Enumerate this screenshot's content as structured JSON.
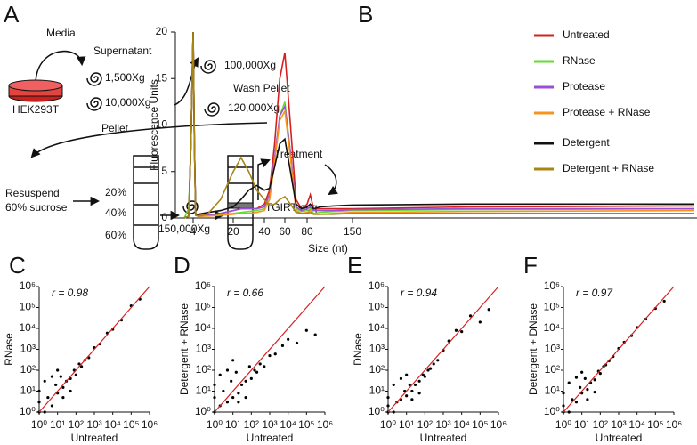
{
  "panel_a": {
    "letter": "A",
    "media": "Media",
    "supernatant": "Supernatant",
    "g1": "1,500Xg",
    "g2": "10,000Xg",
    "g3": "100,000Xg",
    "wash": "Wash Pellet",
    "g4": "120,000Xg",
    "cells": "HEK293T",
    "pellet": "Pellet",
    "resuspend": "Resuspend",
    "sucrose": "60% sucrose",
    "s20": "20%",
    "s40": "40%",
    "s60": "60%",
    "g5": "150,000Xg",
    "treatment": "Treatment",
    "seq": "TGIRT-seq"
  },
  "chart_data": [
    {
      "type": "line",
      "label": "B",
      "xlabel": "Size (nt)",
      "ylabel": "Fluorescence Units",
      "x": [
        2,
        3,
        3.5,
        4,
        4.5,
        5,
        6,
        8,
        10,
        15,
        20,
        25,
        30,
        35,
        40,
        45,
        50,
        55,
        60,
        65,
        70,
        75,
        80,
        85,
        90,
        100,
        120,
        150,
        200,
        300
      ],
      "xlim": [
        0,
        300
      ],
      "xticks": [
        4,
        20,
        40,
        60,
        80,
        150
      ],
      "ylim": [
        0,
        20
      ],
      "yticks": [
        0,
        5,
        10,
        15,
        20
      ],
      "series": [
        {
          "name": "Untreated",
          "color": "#d62020",
          "values": [
            0,
            0.2,
            8,
            20,
            8,
            0.5,
            0.3,
            0.3,
            0.3,
            0.5,
            0.8,
            1,
            1,
            1,
            1.5,
            3,
            8,
            15,
            17.8,
            10,
            2,
            1,
            1.5,
            2.5,
            1,
            1,
            1,
            1,
            1.2,
            1.3
          ]
        },
        {
          "name": "RNase",
          "color": "#66dd33",
          "values": [
            0,
            1,
            8,
            20,
            8,
            0.3,
            0.2,
            0.2,
            0.3,
            0.4,
            0.5,
            0.6,
            0.7,
            0.8,
            1,
            2,
            6,
            11,
            12.5,
            7,
            1,
            0.7,
            0.8,
            1,
            0.5,
            0.6,
            0.7,
            0.8,
            0.9,
            1
          ]
        },
        {
          "name": "Protease",
          "color": "#9b4fd6",
          "values": [
            0,
            0.2,
            8,
            20,
            8,
            0.3,
            0.2,
            0.2,
            0.3,
            0.5,
            0.8,
            1,
            1,
            1,
            1.2,
            2.5,
            6.5,
            11,
            12,
            7,
            1.2,
            0.8,
            1,
            1.2,
            0.8,
            0.8,
            0.8,
            0.9,
            1,
            1
          ]
        },
        {
          "name": "Protease + RNase",
          "color": "#f7941d",
          "values": [
            0,
            0.2,
            8,
            20,
            8,
            0.3,
            0.2,
            0.2,
            0.2,
            0.3,
            0.4,
            0.5,
            0.5,
            0.6,
            0.8,
            2,
            6,
            10.5,
            11.5,
            6.5,
            0.8,
            0.5,
            0.6,
            0.8,
            0.4,
            0.4,
            0.5,
            0.6,
            0.7,
            0.8
          ]
        },
        {
          "name": "Detergent",
          "color": "#111111",
          "values": [
            0,
            0.2,
            8,
            20,
            8,
            0.4,
            0.4,
            0.5,
            0.6,
            0.8,
            1.2,
            2,
            3,
            3.5,
            3,
            3.2,
            5.5,
            8,
            8.5,
            5,
            1.5,
            1,
            1.2,
            1.5,
            1,
            1.2,
            1.3,
            1.4,
            1.5,
            1.5
          ]
        },
        {
          "name": "Detergent + RNase",
          "color": "#a88515",
          "values": [
            0,
            0.2,
            8,
            20,
            8,
            0.3,
            0.2,
            0.3,
            0.5,
            2,
            5,
            6.5,
            5,
            3,
            2,
            1.3,
            1.5,
            2,
            2.3,
            1.5,
            0.6,
            0.5,
            0.5,
            0.6,
            0.4,
            0.4,
            0.4,
            0.5,
            0.5,
            0.5
          ]
        }
      ]
    },
    {
      "type": "scatter",
      "label": "C",
      "xlabel": "Untreated",
      "ylabel": "RNase",
      "annotation": "r = 0.98",
      "log_scale": true,
      "color": "#000000",
      "diagonal_color": "#d62020",
      "xlim": [
        1,
        1000000
      ],
      "ylim": [
        1,
        1000000
      ],
      "xticks": [
        {
          "value": 1,
          "label": "10⁰"
        },
        {
          "value": 10,
          "label": "10¹"
        },
        {
          "value": 100,
          "label": "10²"
        },
        {
          "value": 1000,
          "label": "10³"
        },
        {
          "value": 10000,
          "label": "10⁴"
        },
        {
          "value": 100000,
          "label": "10⁵"
        },
        {
          "value": 1000000,
          "label": "10⁶"
        }
      ],
      "yticks": [
        {
          "value": 1,
          "label": "10⁰"
        },
        {
          "value": 10,
          "label": "10¹"
        },
        {
          "value": 100,
          "label": "10²"
        },
        {
          "value": 1000,
          "label": "10³"
        },
        {
          "value": 10000,
          "label": "10⁴"
        },
        {
          "value": 100000,
          "label": "10⁵"
        },
        {
          "value": 1000000,
          "label": "10⁶"
        }
      ],
      "x": [
        1,
        1,
        1,
        2,
        3,
        5,
        8,
        10,
        15,
        20,
        30,
        50,
        80,
        100,
        150,
        200,
        300,
        500,
        1000,
        2000,
        5000,
        10000,
        30000,
        100000,
        300000,
        2,
        5,
        20,
        50,
        10
      ],
      "y": [
        1,
        3,
        10,
        1,
        5,
        2,
        20,
        8,
        50,
        15,
        30,
        40,
        100,
        60,
        200,
        150,
        300,
        400,
        1200,
        1800,
        6000,
        9000,
        25000,
        120000,
        250000,
        30,
        50,
        5,
        10,
        100
      ]
    },
    {
      "type": "scatter",
      "label": "D",
      "xlabel": "Untreated",
      "ylabel": "Detergent + RNase",
      "annotation": "r = 0.66",
      "log_scale": true,
      "color": "#000000",
      "diagonal_color": "#d62020",
      "xlim": [
        1,
        1000000
      ],
      "ylim": [
        1,
        1000000
      ],
      "xticks": [
        {
          "value": 1,
          "label": "10⁰"
        },
        {
          "value": 10,
          "label": "10¹"
        },
        {
          "value": 100,
          "label": "10²"
        },
        {
          "value": 1000,
          "label": "10³"
        },
        {
          "value": 10000,
          "label": "10⁴"
        },
        {
          "value": 100000,
          "label": "10⁵"
        },
        {
          "value": 1000000,
          "label": "10⁶"
        }
      ],
      "yticks": [
        {
          "value": 1,
          "label": "10⁰"
        },
        {
          "value": 10,
          "label": "10¹"
        },
        {
          "value": 100,
          "label": "10²"
        },
        {
          "value": 1000,
          "label": "10³"
        },
        {
          "value": 10000,
          "label": "10⁴"
        },
        {
          "value": 100000,
          "label": "10⁵"
        },
        {
          "value": 1000000,
          "label": "10⁶"
        }
      ],
      "x": [
        1,
        1,
        1,
        2,
        3,
        5,
        8,
        10,
        15,
        20,
        30,
        50,
        80,
        100,
        150,
        200,
        300,
        500,
        1000,
        2000,
        5000,
        10000,
        30000,
        100000,
        300000,
        2,
        5,
        20,
        50,
        10
      ],
      "y": [
        1,
        5,
        20,
        2,
        10,
        3,
        30,
        5,
        80,
        8,
        20,
        30,
        150,
        40,
        100,
        80,
        200,
        150,
        500,
        600,
        1500,
        3000,
        2000,
        8000,
        5000,
        60,
        100,
        3,
        5,
        300
      ]
    },
    {
      "type": "scatter",
      "label": "E",
      "xlabel": "Untreated",
      "ylabel": "DNase",
      "annotation": "r = 0.94",
      "log_scale": true,
      "color": "#000000",
      "diagonal_color": "#d62020",
      "xlim": [
        1,
        1000000
      ],
      "ylim": [
        1,
        1000000
      ],
      "xticks": [
        {
          "value": 1,
          "label": "10⁰"
        },
        {
          "value": 10,
          "label": "10¹"
        },
        {
          "value": 100,
          "label": "10²"
        },
        {
          "value": 1000,
          "label": "10³"
        },
        {
          "value": 10000,
          "label": "10⁴"
        },
        {
          "value": 100000,
          "label": "10⁵"
        },
        {
          "value": 1000000,
          "label": "10⁶"
        }
      ],
      "yticks": [
        {
          "value": 1,
          "label": "10⁰"
        },
        {
          "value": 10,
          "label": "10¹"
        },
        {
          "value": 100,
          "label": "10²"
        },
        {
          "value": 1000,
          "label": "10³"
        },
        {
          "value": 10000,
          "label": "10⁴"
        },
        {
          "value": 100000,
          "label": "10⁵"
        },
        {
          "value": 1000000,
          "label": "10⁶"
        }
      ],
      "x": [
        1,
        1,
        1,
        2,
        3,
        5,
        8,
        10,
        15,
        20,
        30,
        50,
        80,
        100,
        150,
        200,
        300,
        500,
        1000,
        2000,
        5000,
        10000,
        30000,
        100000,
        300000,
        2,
        5,
        20,
        50,
        10
      ],
      "y": [
        1,
        2,
        5,
        1,
        3,
        4,
        10,
        6,
        20,
        10,
        20,
        30,
        60,
        50,
        100,
        120,
        200,
        300,
        900,
        2500,
        8000,
        7000,
        40000,
        20000,
        80000,
        20,
        40,
        4,
        8,
        60
      ]
    },
    {
      "type": "scatter",
      "label": "F",
      "xlabel": "Untreated",
      "ylabel": "Detergent + DNase",
      "annotation": "r = 0.97",
      "log_scale": true,
      "color": "#000000",
      "diagonal_color": "#d62020",
      "xlim": [
        1,
        1000000
      ],
      "ylim": [
        1,
        1000000
      ],
      "xticks": [
        {
          "value": 1,
          "label": "10⁰"
        },
        {
          "value": 10,
          "label": "10¹"
        },
        {
          "value": 100,
          "label": "10²"
        },
        {
          "value": 1000,
          "label": "10³"
        },
        {
          "value": 10000,
          "label": "10⁴"
        },
        {
          "value": 100000,
          "label": "10⁵"
        },
        {
          "value": 1000000,
          "label": "10⁶"
        }
      ],
      "yticks": [
        {
          "value": 1,
          "label": "10⁰"
        },
        {
          "value": 10,
          "label": "10¹"
        },
        {
          "value": 100,
          "label": "10²"
        },
        {
          "value": 1000,
          "label": "10³"
        },
        {
          "value": 10000,
          "label": "10⁴"
        },
        {
          "value": 100000,
          "label": "10⁵"
        },
        {
          "value": 1000000,
          "label": "10⁶"
        }
      ],
      "x": [
        1,
        1,
        1,
        2,
        3,
        5,
        8,
        10,
        15,
        20,
        30,
        50,
        80,
        100,
        150,
        200,
        300,
        500,
        1000,
        2000,
        5000,
        10000,
        30000,
        100000,
        300000,
        2,
        5,
        20,
        50,
        10
      ],
      "y": [
        1,
        2,
        8,
        1,
        4,
        3,
        15,
        8,
        40,
        12,
        25,
        35,
        90,
        70,
        150,
        180,
        280,
        450,
        1100,
        2200,
        4500,
        11000,
        28000,
        90000,
        200000,
        25,
        45,
        4,
        9,
        80
      ]
    }
  ]
}
